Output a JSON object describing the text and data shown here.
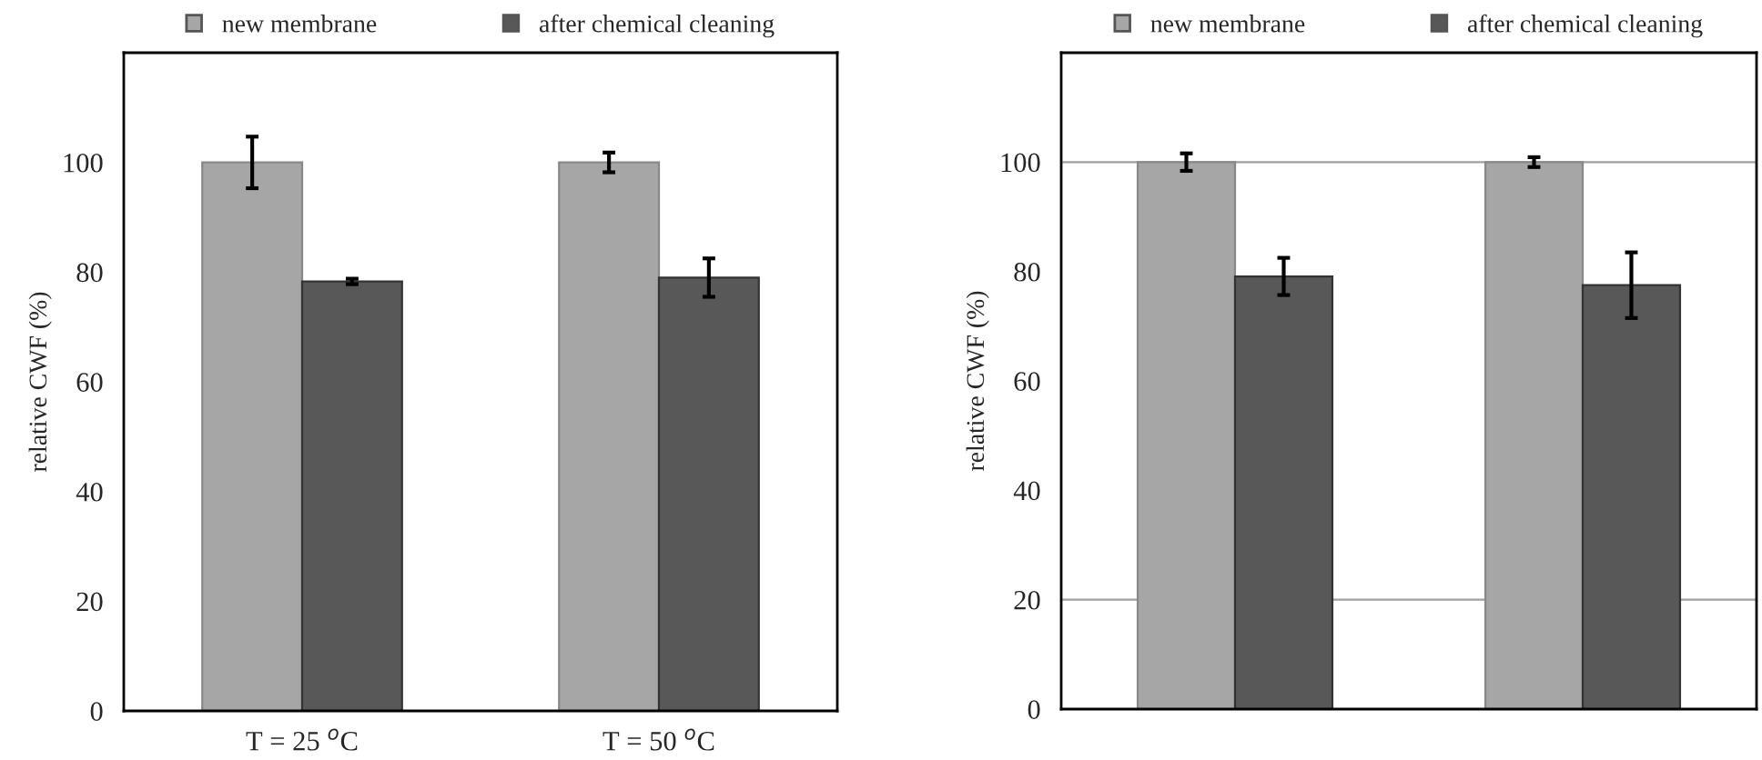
{
  "chart_data": [
    {
      "type": "bar",
      "ylabel": "relative CWF (%)",
      "categories": [
        "T = 25 $^{o}$C",
        "T = 50 $^{o}$C"
      ],
      "series": [
        {
          "name": "new membrane",
          "color": "#a6a6a6",
          "values": [
            100,
            100
          ],
          "errors": [
            4.7,
            1.8
          ]
        },
        {
          "name": "after chemical cleaning",
          "color": "#585858",
          "values": [
            78.3,
            79.0
          ],
          "errors": [
            0.5,
            3.5
          ]
        }
      ],
      "ylim": [
        0,
        120
      ],
      "yticks": [
        0,
        20,
        40,
        60,
        80,
        100
      ],
      "legend": "top",
      "grid": false
    },
    {
      "type": "bar",
      "ylabel": "relative CWF (%)",
      "categories": [
        null,
        null
      ],
      "series": [
        {
          "name": "new membrane",
          "color": "#a6a6a6",
          "values": [
            100,
            100
          ],
          "errors": [
            1.6,
            0.9
          ]
        },
        {
          "name": "after chemical cleaning",
          "color": "#585858",
          "values": [
            79.1,
            77.5
          ],
          "errors": [
            3.4,
            6.0
          ]
        }
      ],
      "ylim": [
        0,
        120
      ],
      "yticks": [
        0,
        20,
        40,
        60,
        80,
        100
      ],
      "legend": "top",
      "grid": false,
      "ref_lines": [
        {
          "axis": "y",
          "value": 100,
          "color": "#a0a0a0"
        },
        {
          "axis": "y",
          "value": 20,
          "color": "#a0a0a0"
        }
      ]
    }
  ]
}
